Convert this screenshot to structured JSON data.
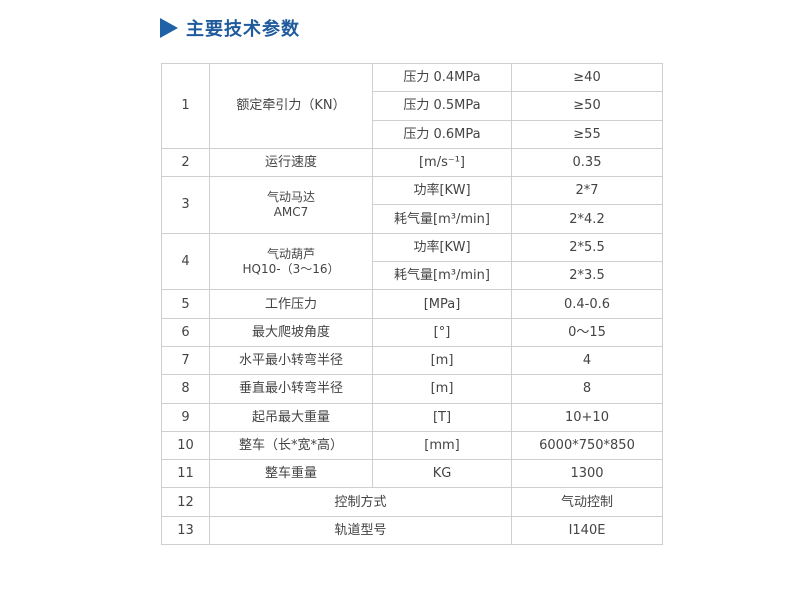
{
  "header": {
    "title": "主要技术参数",
    "icon": "triangle-right-icon",
    "accent": "#1f62a8"
  },
  "rows": [
    {
      "no": "1",
      "name": "额定牵引力（KN）",
      "subs": [
        [
          "压力 0.4MPa",
          "≥40"
        ],
        [
          "压力 0.5MPa",
          "≥50"
        ],
        [
          "压力 0.6MPa",
          "≥55"
        ]
      ]
    },
    {
      "no": "2",
      "name": "运行速度",
      "unit": "[m/s⁻¹]",
      "value": "0.35"
    },
    {
      "no": "3",
      "name": "气动马达",
      "model": "AMC7",
      "subs": [
        [
          "功率[KW]",
          "2*7"
        ],
        [
          "耗气量[m³/min]",
          "2*4.2"
        ]
      ]
    },
    {
      "no": "4",
      "name": "气动葫芦",
      "model": "HQ10-（3～16）",
      "subs": [
        [
          "功率[KW]",
          "2*5.5"
        ],
        [
          "耗气量[m³/min]",
          "2*3.5"
        ]
      ]
    },
    {
      "no": "5",
      "name": "工作压力",
      "unit": "[MPa]",
      "value": "0.4-0.6"
    },
    {
      "no": "6",
      "name": "最大爬坡角度",
      "unit": "[°]",
      "value": "0～15"
    },
    {
      "no": "7",
      "name": "水平最小转弯半径",
      "unit": "[m]",
      "value": "4"
    },
    {
      "no": "8",
      "name": "垂直最小转弯半径",
      "unit": "[m]",
      "value": "8"
    },
    {
      "no": "9",
      "name": "起吊最大重量",
      "unit": "[T]",
      "value": "10+10"
    },
    {
      "no": "10",
      "name": "整车（长*宽*高）",
      "unit": "[mm]",
      "value": "6000*750*850"
    },
    {
      "no": "11",
      "name": "整车重量",
      "unit": "KG",
      "value": "1300"
    },
    {
      "no": "12",
      "name": "控制方式",
      "value": "气动控制"
    },
    {
      "no": "13",
      "name": "轨道型号",
      "value": "I140E"
    }
  ]
}
